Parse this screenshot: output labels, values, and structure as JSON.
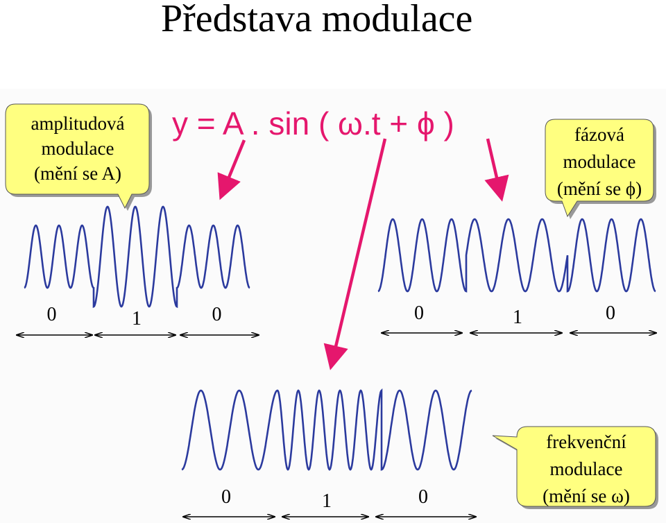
{
  "title": "Představa modulace",
  "formula": "y = A . sin ( ω.t + ϕ )",
  "panels": [
    {
      "callout": [
        "amplitudová",
        "modulace",
        "(mění se A)"
      ],
      "bits": [
        0,
        1,
        0
      ]
    },
    {
      "callout": [
        "fázová",
        "modulace",
        "(mění se ϕ)"
      ],
      "bits": [
        0,
        1,
        0
      ]
    },
    {
      "callout": [
        "frekvenční",
        "modulace",
        "(mění se ω)"
      ],
      "bits": [
        0,
        1,
        0
      ]
    }
  ]
}
